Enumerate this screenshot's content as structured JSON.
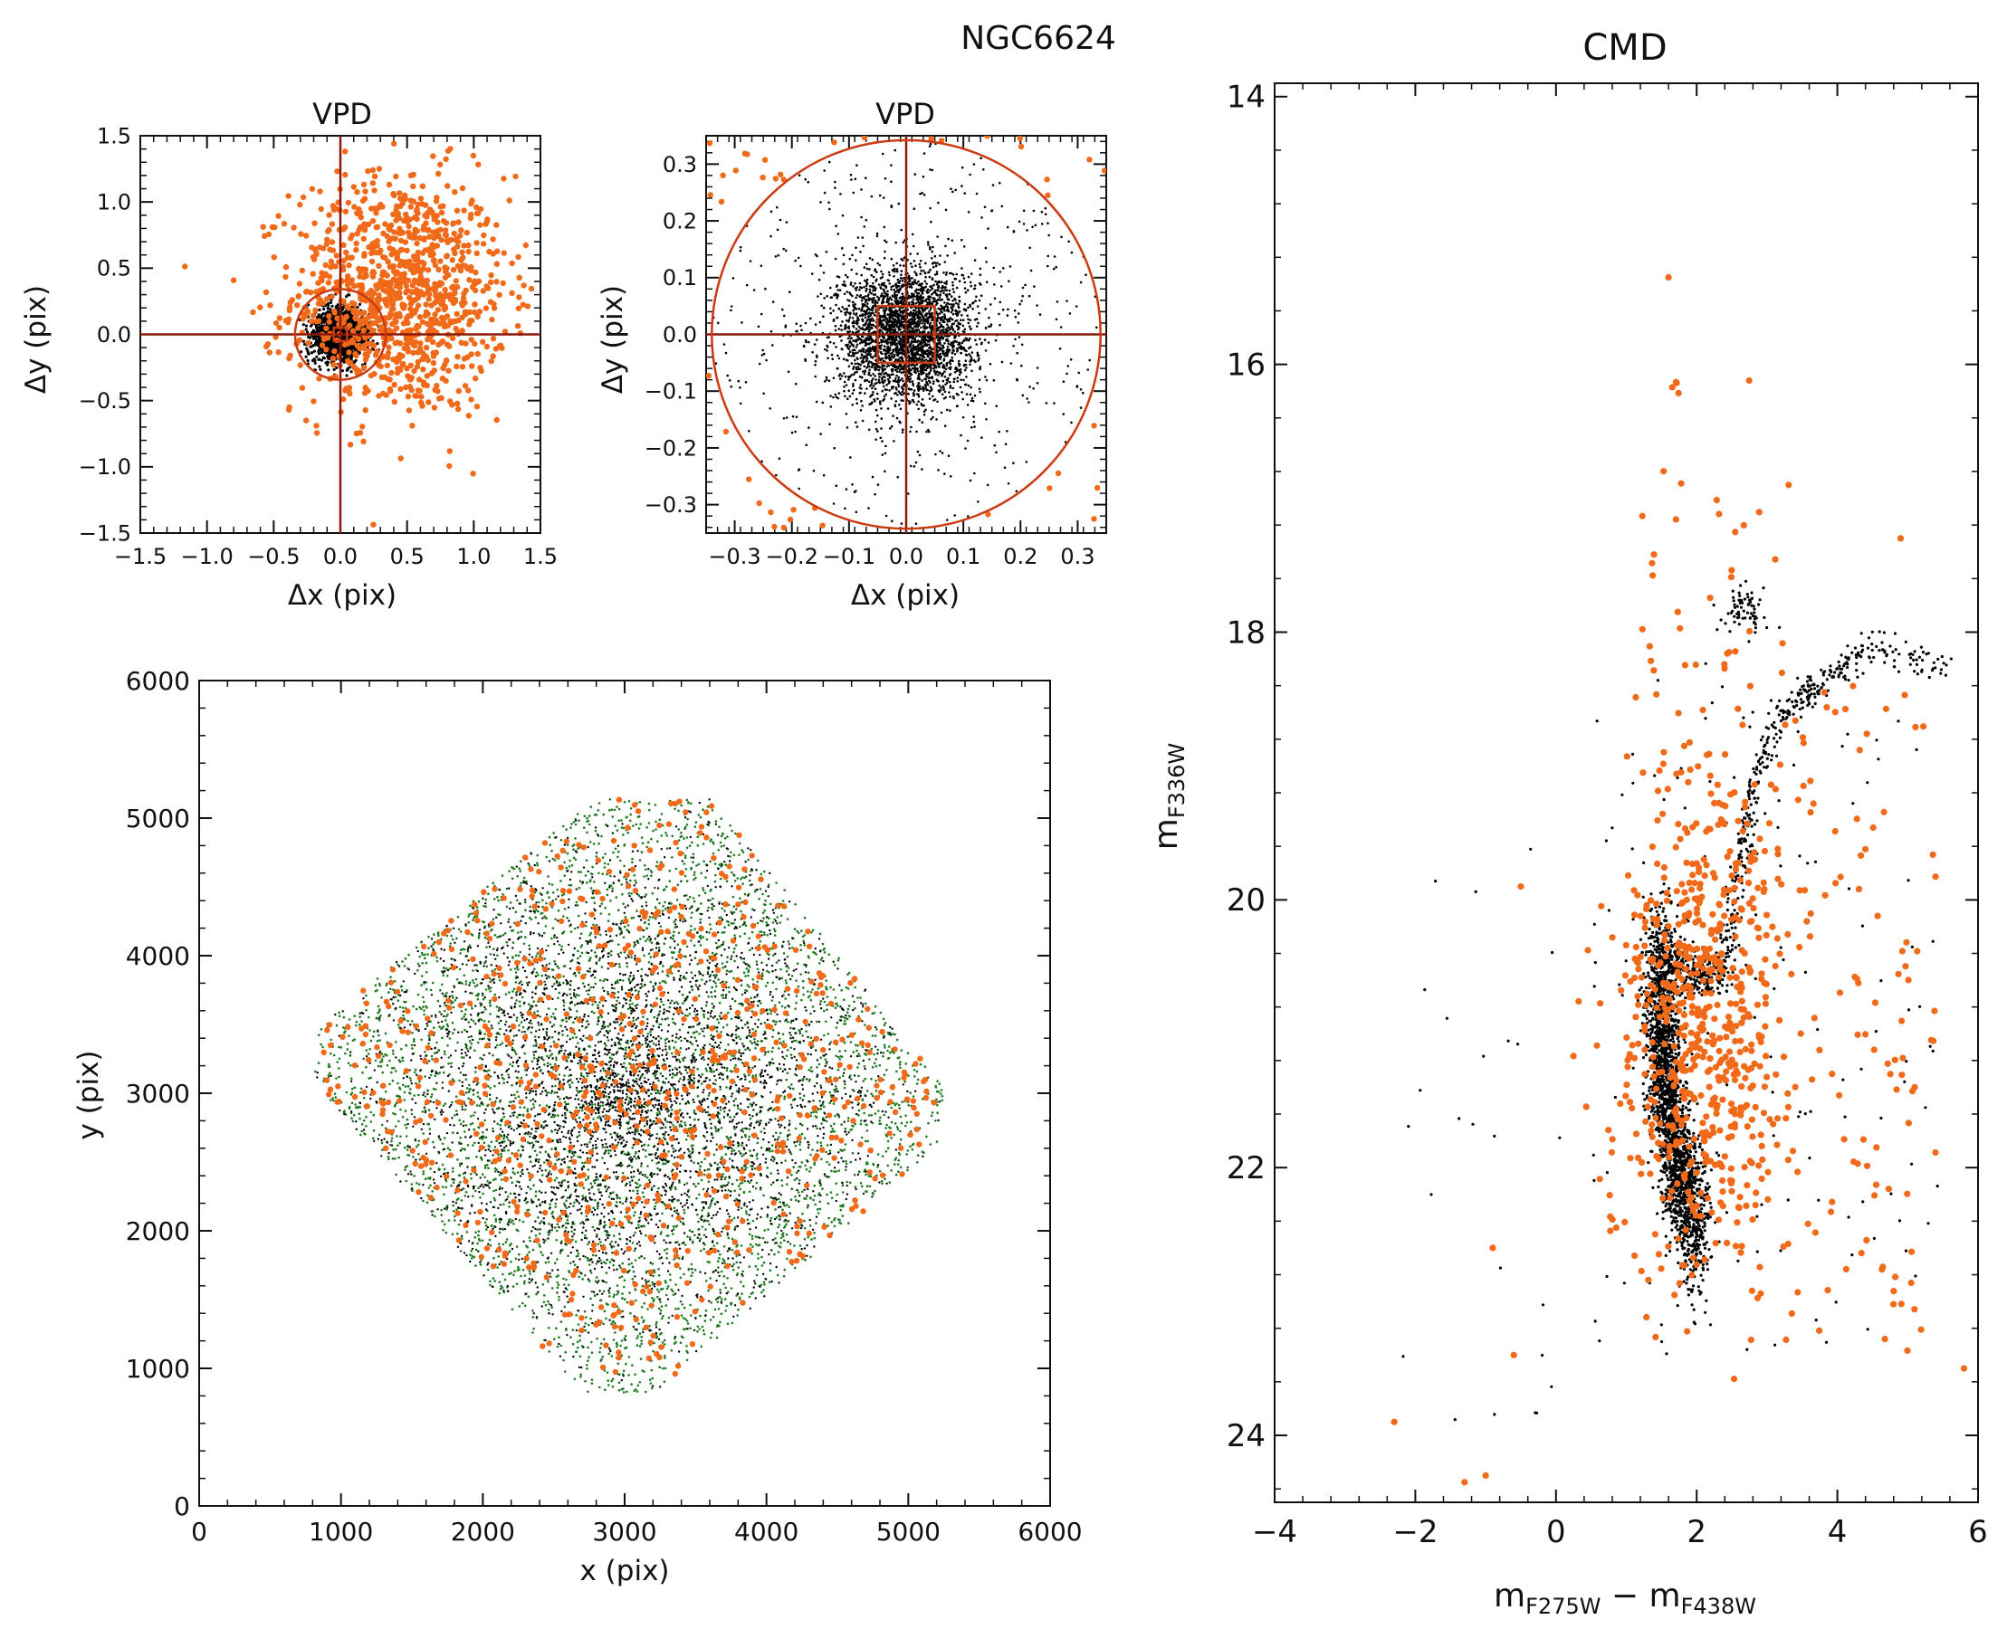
{
  "figure_title": "NGC6624",
  "colors": {
    "members": "#000000",
    "field": "#f06a1a",
    "cut": "#8b1a0a",
    "cut_circle": "#cc3a12",
    "green": "#1f7a1f"
  },
  "chart_data": [
    {
      "id": "vpd1",
      "type": "scatter",
      "title": "VPD",
      "xlabel": "Δx (pix)",
      "ylabel": "Δy (pix)",
      "xlim": [
        -1.5,
        1.5
      ],
      "ylim": [
        -1.5,
        1.5
      ],
      "xticks": [
        -1.5,
        -1.0,
        -0.5,
        0.0,
        0.5,
        1.0,
        1.5
      ],
      "yticks": [
        -1.5,
        -1.0,
        -0.5,
        0.0,
        0.5,
        1.0,
        1.5
      ],
      "xtick_labels": [
        "−1.5",
        "−1.0",
        "−0.5",
        "0.0",
        "0.5",
        "1.0",
        "1.5"
      ],
      "ytick_labels": [
        "−1.5",
        "−1.0",
        "−0.5",
        "0.0",
        "0.5",
        "1.0",
        "1.5"
      ],
      "cut_radius": 0.34,
      "box_halfwidth": 0.05,
      "series": [
        {
          "role": "members",
          "color": "#000000",
          "center": [
            0.0,
            0.0
          ],
          "spread": [
            0.08,
            0.08
          ],
          "count": 2500
        },
        {
          "role": "field",
          "color": "#f06a1a",
          "center": [
            0.45,
            0.3
          ],
          "spread": [
            0.4,
            0.45
          ],
          "count": 1100
        }
      ]
    },
    {
      "id": "vpd2",
      "type": "scatter",
      "title": "VPD",
      "xlabel": "Δx (pix)",
      "ylabel": "Δy (pix)",
      "xlim": [
        -0.35,
        0.35
      ],
      "ylim": [
        -0.35,
        0.35
      ],
      "xticks": [
        -0.3,
        -0.2,
        -0.1,
        0.0,
        0.1,
        0.2,
        0.3
      ],
      "yticks": [
        -0.3,
        -0.2,
        -0.1,
        0.0,
        0.1,
        0.2,
        0.3
      ],
      "xtick_labels": [
        "−0.3",
        "−0.2",
        "−0.1",
        "0.0",
        "0.1",
        "0.2",
        "0.3"
      ],
      "ytick_labels": [
        "−0.3",
        "−0.2",
        "−0.1",
        "0.0",
        "0.1",
        "0.2",
        "0.3"
      ],
      "cut_radius": 0.34,
      "box_halfwidth": 0.05,
      "series": [
        {
          "role": "members",
          "color": "#000000",
          "center": [
            0.0,
            0.0
          ],
          "spread": [
            0.06,
            0.06
          ],
          "count": 3000
        },
        {
          "role": "field",
          "color": "#f06a1a",
          "region": "outside_circle",
          "count": 40
        }
      ]
    },
    {
      "id": "xy",
      "type": "scatter",
      "title": "",
      "xlabel": "x (pix)",
      "ylabel": "y (pix)",
      "xlim": [
        0,
        6000
      ],
      "ylim": [
        0,
        6000
      ],
      "xticks": [
        0,
        1000,
        2000,
        3000,
        4000,
        5000,
        6000
      ],
      "yticks": [
        0,
        1000,
        2000,
        3000,
        4000,
        5000,
        6000
      ],
      "xtick_labels": [
        "0",
        "1000",
        "2000",
        "3000",
        "4000",
        "5000",
        "6000"
      ],
      "ytick_labels": [
        "0",
        "1000",
        "2000",
        "3000",
        "4000",
        "5000",
        "6000"
      ],
      "footprint": [
        [
          2800,
          5150
        ],
        [
          3600,
          5150
        ],
        [
          5250,
          3050
        ],
        [
          5200,
          2600
        ],
        [
          3200,
          820
        ],
        [
          2700,
          820
        ],
        [
          800,
          3100
        ],
        [
          850,
          3500
        ]
      ],
      "series": [
        {
          "role": "green",
          "color": "#1f7a1f",
          "count": 4500
        },
        {
          "role": "members",
          "color": "#000000",
          "center": [
            3000,
            3000
          ],
          "count": 3500
        },
        {
          "role": "field",
          "color": "#f06a1a",
          "count": 700
        }
      ]
    },
    {
      "id": "cmd",
      "type": "scatter",
      "title": "CMD",
      "xlabel": "m_F275W − m_F438W",
      "ylabel": "m_F336W",
      "xlim": [
        -4,
        6
      ],
      "ylim": [
        24.5,
        13.9
      ],
      "xticks": [
        -4,
        -2,
        0,
        2,
        4,
        6
      ],
      "yticks": [
        14,
        16,
        18,
        20,
        22,
        24
      ],
      "xtick_labels": [
        "−4",
        "−2",
        "0",
        "2",
        "4",
        "6"
      ],
      "ytick_labels": [
        "14",
        "16",
        "18",
        "20",
        "22",
        "24"
      ],
      "main_sequence": [
        [
          1.5,
          20.3
        ],
        [
          1.5,
          21.0
        ],
        [
          1.6,
          21.6
        ],
        [
          1.8,
          22.1
        ],
        [
          2.0,
          22.5
        ]
      ],
      "subgiant_branch": [
        [
          1.6,
          20.4
        ],
        [
          2.0,
          20.6
        ],
        [
          2.4,
          20.5
        ]
      ],
      "red_giant_branch": [
        [
          2.4,
          20.5
        ],
        [
          2.6,
          19.8
        ],
        [
          2.8,
          19.2
        ],
        [
          3.2,
          18.6
        ],
        [
          3.7,
          18.4
        ],
        [
          4.5,
          18.1
        ],
        [
          5.5,
          18.3
        ]
      ],
      "red_clump": [
        2.7,
        17.8
      ],
      "series": [
        {
          "role": "members",
          "color": "#000000",
          "count": 3000
        },
        {
          "role": "field",
          "color": "#f06a1a",
          "count": 900
        }
      ]
    }
  ]
}
